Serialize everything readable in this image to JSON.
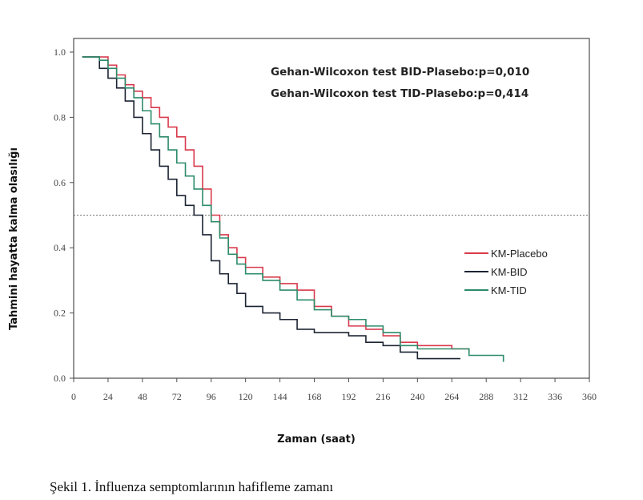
{
  "chart_data": {
    "type": "line",
    "title": "",
    "xlabel": "Zaman (saat)",
    "ylabel": "Tahmini hayatta kalma olasılığı",
    "xlim": [
      0,
      360
    ],
    "ylim": [
      0,
      1.0
    ],
    "x_ticks": [
      "0",
      "24",
      "48",
      "72",
      "96",
      "120",
      "144",
      "168",
      "192",
      "216",
      "240",
      "264",
      "288",
      "312",
      "336",
      "360"
    ],
    "y_ticks": [
      "0.0",
      "0.2",
      "0.4",
      "0.6",
      "0.8",
      "1.0"
    ],
    "grid": false,
    "reference_line": {
      "y": 0.5,
      "style": "dotted"
    },
    "legend_position": "right",
    "annotations": [
      "Gehan-Wilcoxon test BID-Plasebo:p=0,010",
      "Gehan-Wilcoxon test TID-Plasebo:p=0,414"
    ],
    "series": [
      {
        "name": "KM-Placebo",
        "color": "#d83a4c",
        "points": [
          [
            6,
            0.985
          ],
          [
            18,
            0.985
          ],
          [
            24,
            0.96
          ],
          [
            30,
            0.93
          ],
          [
            36,
            0.9
          ],
          [
            42,
            0.88
          ],
          [
            48,
            0.86
          ],
          [
            54,
            0.83
          ],
          [
            60,
            0.8
          ],
          [
            66,
            0.77
          ],
          [
            72,
            0.74
          ],
          [
            78,
            0.7
          ],
          [
            84,
            0.65
          ],
          [
            90,
            0.58
          ],
          [
            96,
            0.5
          ],
          [
            102,
            0.44
          ],
          [
            108,
            0.4
          ],
          [
            114,
            0.37
          ],
          [
            120,
            0.34
          ],
          [
            132,
            0.31
          ],
          [
            144,
            0.29
          ],
          [
            156,
            0.27
          ],
          [
            168,
            0.22
          ],
          [
            180,
            0.19
          ],
          [
            192,
            0.16
          ],
          [
            204,
            0.15
          ],
          [
            216,
            0.13
          ],
          [
            228,
            0.11
          ],
          [
            240,
            0.1
          ],
          [
            252,
            0.1
          ],
          [
            264,
            0.09
          ],
          [
            276,
            0.08
          ]
        ]
      },
      {
        "name": "KM-BID",
        "color": "#1c2433",
        "points": [
          [
            6,
            0.985
          ],
          [
            12,
            0.985
          ],
          [
            18,
            0.95
          ],
          [
            24,
            0.92
          ],
          [
            30,
            0.89
          ],
          [
            36,
            0.85
          ],
          [
            42,
            0.8
          ],
          [
            48,
            0.75
          ],
          [
            54,
            0.7
          ],
          [
            60,
            0.65
          ],
          [
            66,
            0.61
          ],
          [
            72,
            0.56
          ],
          [
            78,
            0.53
          ],
          [
            84,
            0.5
          ],
          [
            90,
            0.44
          ],
          [
            96,
            0.36
          ],
          [
            102,
            0.32
          ],
          [
            108,
            0.29
          ],
          [
            114,
            0.26
          ],
          [
            120,
            0.22
          ],
          [
            132,
            0.2
          ],
          [
            144,
            0.18
          ],
          [
            156,
            0.15
          ],
          [
            168,
            0.14
          ],
          [
            180,
            0.14
          ],
          [
            192,
            0.13
          ],
          [
            204,
            0.11
          ],
          [
            216,
            0.1
          ],
          [
            228,
            0.08
          ],
          [
            240,
            0.06
          ],
          [
            252,
            0.06
          ],
          [
            264,
            0.06
          ],
          [
            270,
            0.06
          ]
        ]
      },
      {
        "name": "KM-TID",
        "color": "#2c8c6a",
        "points": [
          [
            6,
            0.985
          ],
          [
            18,
            0.975
          ],
          [
            24,
            0.95
          ],
          [
            30,
            0.92
          ],
          [
            36,
            0.89
          ],
          [
            42,
            0.86
          ],
          [
            48,
            0.82
          ],
          [
            54,
            0.78
          ],
          [
            60,
            0.74
          ],
          [
            66,
            0.7
          ],
          [
            72,
            0.66
          ],
          [
            78,
            0.62
          ],
          [
            84,
            0.58
          ],
          [
            90,
            0.53
          ],
          [
            96,
            0.48
          ],
          [
            102,
            0.43
          ],
          [
            108,
            0.38
          ],
          [
            114,
            0.35
          ],
          [
            120,
            0.32
          ],
          [
            132,
            0.3
          ],
          [
            144,
            0.27
          ],
          [
            156,
            0.24
          ],
          [
            168,
            0.21
          ],
          [
            180,
            0.19
          ],
          [
            192,
            0.18
          ],
          [
            204,
            0.16
          ],
          [
            216,
            0.14
          ],
          [
            228,
            0.1
          ],
          [
            240,
            0.09
          ],
          [
            252,
            0.09
          ],
          [
            264,
            0.09
          ],
          [
            276,
            0.07
          ],
          [
            288,
            0.07
          ],
          [
            300,
            0.05
          ]
        ]
      }
    ]
  },
  "caption": "Şekil  1. İnfluenza semptomlarının hafifleme zamanı"
}
